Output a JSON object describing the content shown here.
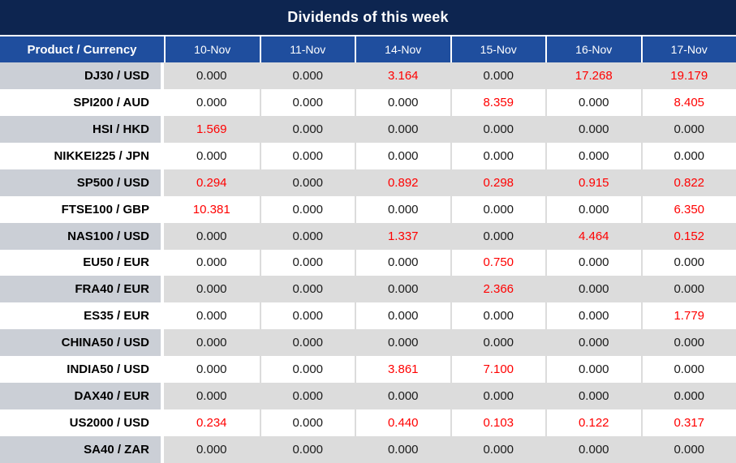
{
  "chart_data": {
    "type": "table",
    "title": "Dividends of this week",
    "row_header_label": "Product / Currency",
    "columns": [
      "10-Nov",
      "11-Nov",
      "14-Nov",
      "15-Nov",
      "16-Nov",
      "17-Nov"
    ],
    "rows": [
      {
        "product": "DJ30 / USD",
        "values": [
          "0.000",
          "0.000",
          "3.164",
          "0.000",
          "17.268",
          "19.179"
        ]
      },
      {
        "product": "SPI200 / AUD",
        "values": [
          "0.000",
          "0.000",
          "0.000",
          "8.359",
          "0.000",
          "8.405"
        ]
      },
      {
        "product": "HSI / HKD",
        "values": [
          "1.569",
          "0.000",
          "0.000",
          "0.000",
          "0.000",
          "0.000"
        ]
      },
      {
        "product": "NIKKEI225 / JPN",
        "values": [
          "0.000",
          "0.000",
          "0.000",
          "0.000",
          "0.000",
          "0.000"
        ]
      },
      {
        "product": "SP500 / USD",
        "values": [
          "0.294",
          "0.000",
          "0.892",
          "0.298",
          "0.915",
          "0.822"
        ]
      },
      {
        "product": "FTSE100 / GBP",
        "values": [
          "10.381",
          "0.000",
          "0.000",
          "0.000",
          "0.000",
          "6.350"
        ]
      },
      {
        "product": "NAS100 / USD",
        "values": [
          "0.000",
          "0.000",
          "1.337",
          "0.000",
          "4.464",
          "0.152"
        ]
      },
      {
        "product": "EU50 / EUR",
        "values": [
          "0.000",
          "0.000",
          "0.000",
          "0.750",
          "0.000",
          "0.000"
        ]
      },
      {
        "product": "FRA40 / EUR",
        "values": [
          "0.000",
          "0.000",
          "0.000",
          "2.366",
          "0.000",
          "0.000"
        ]
      },
      {
        "product": "ES35 / EUR",
        "values": [
          "0.000",
          "0.000",
          "0.000",
          "0.000",
          "0.000",
          "1.779"
        ]
      },
      {
        "product": "CHINA50 / USD",
        "values": [
          "0.000",
          "0.000",
          "0.000",
          "0.000",
          "0.000",
          "0.000"
        ]
      },
      {
        "product": "INDIA50 / USD",
        "values": [
          "0.000",
          "0.000",
          "3.861",
          "7.100",
          "0.000",
          "0.000"
        ]
      },
      {
        "product": "DAX40 / EUR",
        "values": [
          "0.000",
          "0.000",
          "0.000",
          "0.000",
          "0.000",
          "0.000"
        ]
      },
      {
        "product": "US2000 / USD",
        "values": [
          "0.234",
          "0.000",
          "0.440",
          "0.103",
          "0.122",
          "0.317"
        ]
      },
      {
        "product": "SA40 / ZAR",
        "values": [
          "0.000",
          "0.000",
          "0.000",
          "0.000",
          "0.000",
          "0.000"
        ]
      }
    ],
    "value_color_rule": "non-zero values rendered in red, zeros in black",
    "layout": {
      "row_shading": "alternating gray/white starting gray",
      "grid": "white separators in header, light-gray column separators in white rows"
    }
  },
  "colors": {
    "title_bg": "#0D2550",
    "header_bg": "#1F4E9E",
    "product_gray": "#CBCFD6",
    "row_gray": "#DCDCDC",
    "value_red": "#FF0000",
    "value_black": "#1A1A1A"
  }
}
